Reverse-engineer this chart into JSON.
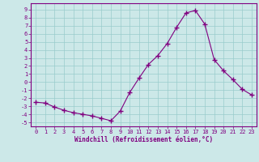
{
  "x": [
    0,
    1,
    2,
    3,
    4,
    5,
    6,
    7,
    8,
    9,
    10,
    11,
    12,
    13,
    14,
    15,
    16,
    17,
    18,
    19,
    20,
    21,
    22,
    23
  ],
  "y": [
    -2.5,
    -2.6,
    -3.1,
    -3.5,
    -3.8,
    -4.0,
    -4.2,
    -4.5,
    -4.8,
    -3.6,
    -1.3,
    0.5,
    2.2,
    3.3,
    4.8,
    6.8,
    8.6,
    8.9,
    7.2,
    2.8,
    1.4,
    0.3,
    -0.9,
    -1.6
  ],
  "line_color": "#800080",
  "marker": "+",
  "marker_size": 4,
  "bg_color": "#cce8e8",
  "grid_color": "#99cccc",
  "xlabel": "Windchill (Refroidissement éolien,°C)",
  "xlim": [
    -0.5,
    23.5
  ],
  "ylim": [
    -5.5,
    9.8
  ],
  "yticks": [
    -5,
    -4,
    -3,
    -2,
    -1,
    0,
    1,
    2,
    3,
    4,
    5,
    6,
    7,
    8,
    9
  ],
  "xticks": [
    0,
    1,
    2,
    3,
    4,
    5,
    6,
    7,
    8,
    9,
    10,
    11,
    12,
    13,
    14,
    15,
    16,
    17,
    18,
    19,
    20,
    21,
    22,
    23
  ]
}
